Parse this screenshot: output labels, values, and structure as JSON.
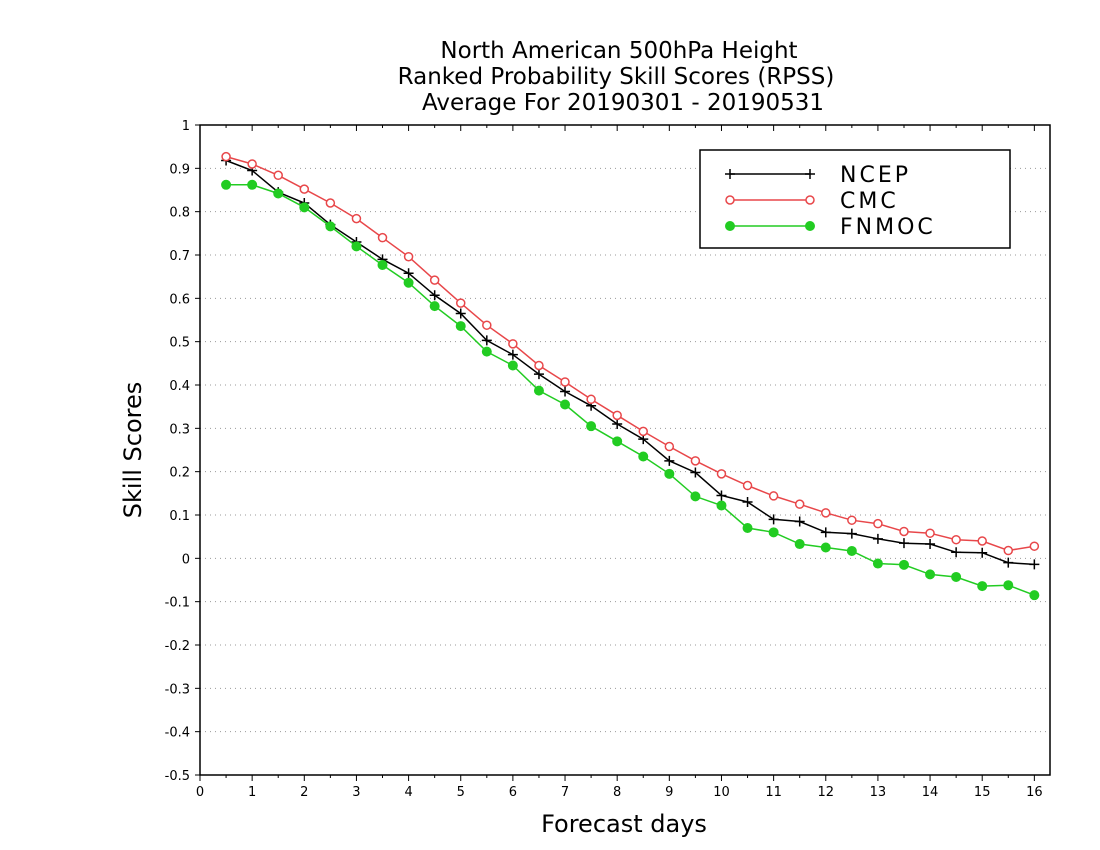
{
  "chart_data": {
    "type": "line",
    "title_lines": [
      "North American 500hPa Height",
      "Ranked Probability Skill Scores (RPSS)",
      "Average For 20190301 - 20190531"
    ],
    "xlabel": "Forecast days",
    "ylabel": "Skill Scores",
    "xlim": [
      0,
      16.3
    ],
    "ylim": [
      -0.5,
      1
    ],
    "xticks": [
      "0",
      "1",
      "2",
      "3",
      "4",
      "5",
      "6",
      "7",
      "8",
      "9",
      "10",
      "11",
      "12",
      "13",
      "14",
      "15",
      "16"
    ],
    "yticks": [
      "1",
      "0.9",
      "0.8",
      "0.7",
      "0.6",
      "0.5",
      "0.4",
      "0.3",
      "0.2",
      "0.1",
      "0",
      "-0.1",
      "-0.2",
      "-0.3",
      "-0.4",
      "-0.5"
    ],
    "grid": "horizontal dotted",
    "legend_position": "top-right",
    "x": [
      0.5,
      1,
      1.5,
      2,
      2.5,
      3,
      3.5,
      4,
      4.5,
      5,
      5.5,
      6,
      6.5,
      7,
      7.5,
      8,
      8.5,
      9,
      9.5,
      10,
      10.5,
      11,
      11.5,
      12,
      12.5,
      13,
      13.5,
      14,
      14.5,
      15,
      15.5,
      16
    ],
    "series": [
      {
        "name": "NCEP",
        "color": "#000000",
        "marker": "plus",
        "values": [
          0.918,
          0.895,
          0.845,
          0.82,
          0.77,
          0.73,
          0.69,
          0.658,
          0.607,
          0.565,
          0.503,
          0.47,
          0.425,
          0.385,
          0.352,
          0.31,
          0.275,
          0.225,
          0.198,
          0.145,
          0.13,
          0.09,
          0.085,
          0.06,
          0.057,
          0.045,
          0.035,
          0.033,
          0.014,
          0.013,
          -0.01,
          -0.014
        ]
      },
      {
        "name": "CMC",
        "color": "#e8474a",
        "marker": "open-circle",
        "values": [
          0.927,
          0.91,
          0.884,
          0.852,
          0.82,
          0.784,
          0.74,
          0.696,
          0.642,
          0.589,
          0.538,
          0.495,
          0.445,
          0.407,
          0.367,
          0.33,
          0.293,
          0.258,
          0.225,
          0.195,
          0.168,
          0.144,
          0.125,
          0.105,
          0.088,
          0.08,
          0.062,
          0.058,
          0.043,
          0.04,
          0.018,
          0.028
        ]
      },
      {
        "name": "FNMOC",
        "color": "#22cc22",
        "marker": "filled-circle",
        "values": [
          0.862,
          0.862,
          0.842,
          0.81,
          0.766,
          0.72,
          0.677,
          0.636,
          0.582,
          0.536,
          0.477,
          0.445,
          0.387,
          0.355,
          0.305,
          0.27,
          0.235,
          0.195,
          0.143,
          0.122,
          0.07,
          0.06,
          0.033,
          0.025,
          0.017,
          -0.012,
          -0.015,
          -0.037,
          -0.043,
          -0.064,
          -0.062,
          -0.085
        ]
      }
    ]
  }
}
